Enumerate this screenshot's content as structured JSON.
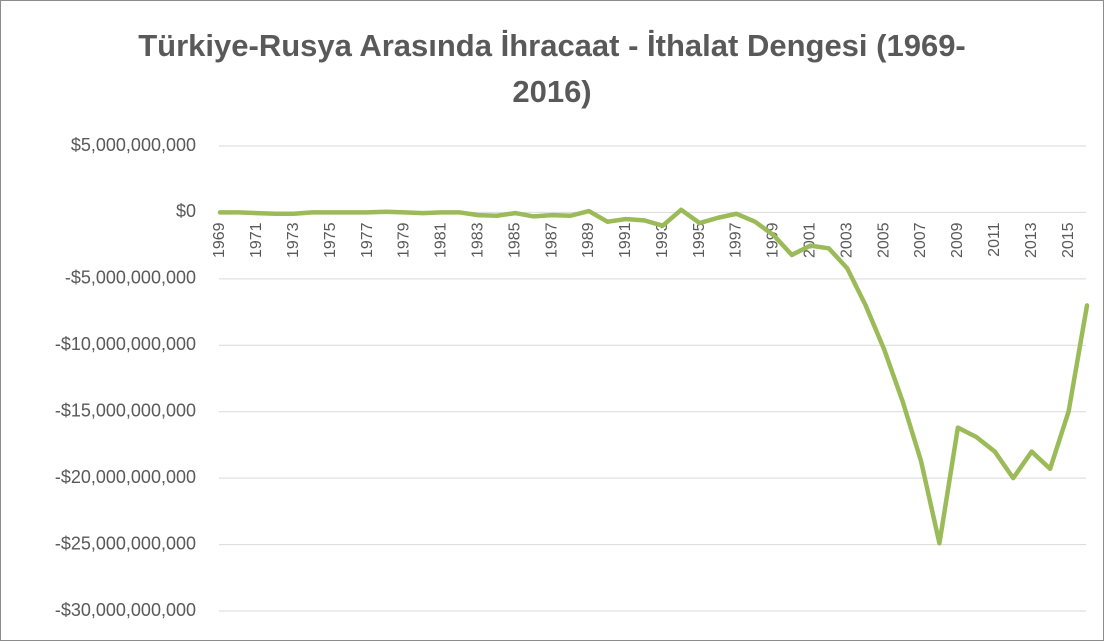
{
  "chart_data": {
    "type": "line",
    "title": "Türkiye-Rusya Arasında İhracaat - İthalat Dengesi (1969-2016)",
    "categories": [
      "1969",
      null,
      "1971",
      null,
      "1973",
      null,
      "1975",
      null,
      "1977",
      null,
      "1979",
      null,
      "1981",
      null,
      "1983",
      null,
      "1985",
      null,
      "1987",
      null,
      "1989",
      null,
      "1991",
      null,
      "1993",
      null,
      "1995",
      null,
      "1997",
      null,
      "1999",
      null,
      "2001",
      null,
      "2003",
      null,
      "2005",
      null,
      "2007",
      null,
      "2009",
      null,
      "2011",
      null,
      "2013",
      null,
      "2015",
      null
    ],
    "values": [
      0,
      0,
      -50000000,
      -100000000,
      -100000000,
      0,
      0,
      0,
      0,
      50000000,
      0,
      -50000000,
      0,
      0,
      -200000000,
      -250000000,
      -50000000,
      -300000000,
      -200000000,
      -250000000,
      100000000,
      -700000000,
      -500000000,
      -600000000,
      -1000000000,
      200000000,
      -800000000,
      -400000000,
      -100000000,
      -700000000,
      -1700000000,
      -3200000000,
      -2500000000,
      -2700000000,
      -4200000000,
      -7000000000,
      -10300000000,
      -14200000000,
      -18700000000,
      -24900000000,
      -16200000000,
      -16900000000,
      -18000000000,
      -20000000000,
      -18000000000,
      -19300000000,
      -15000000000,
      -7000000000
    ],
    "color": "#9bbb59",
    "ylim": [
      -30000000000,
      5000000000
    ],
    "yticks": [
      {
        "value": 5000000000,
        "label": "$5,000,000,000"
      },
      {
        "value": 0,
        "label": "$0"
      },
      {
        "value": -5000000000,
        "label": "-$5,000,000,000"
      },
      {
        "value": -10000000000,
        "label": "-$10,000,000,000"
      },
      {
        "value": -15000000000,
        "label": "-$15,000,000,000"
      },
      {
        "value": -20000000000,
        "label": "-$20,000,000,000"
      },
      {
        "value": -25000000000,
        "label": "-$25,000,000,000"
      },
      {
        "value": -30000000000,
        "label": "-$30,000,000,000"
      }
    ],
    "grid": true
  }
}
